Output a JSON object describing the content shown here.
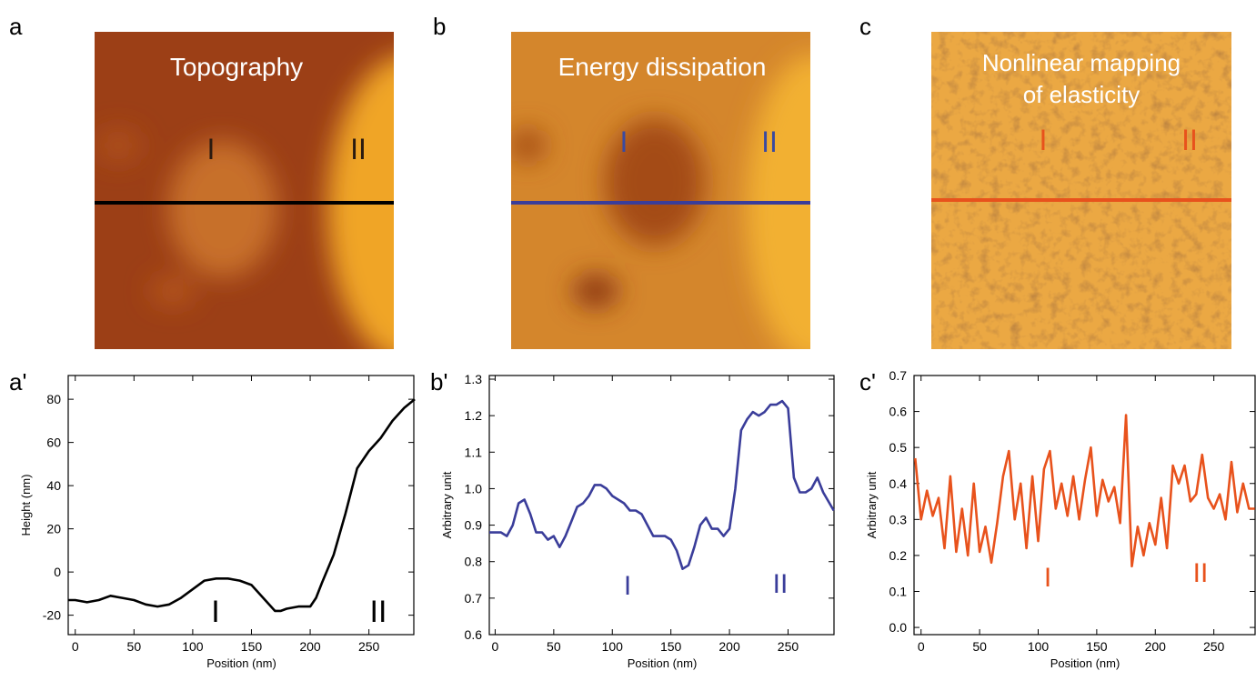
{
  "images": [
    {
      "label": "a",
      "title": [
        "Topography"
      ],
      "regions": [
        "I",
        "II"
      ]
    },
    {
      "label": "b",
      "title": [
        "Energy dissipation"
      ],
      "regions": [
        "I",
        "II"
      ]
    },
    {
      "label": "c",
      "title": [
        "Nonlinear mapping",
        "of elasticity"
      ],
      "regions": [
        "I",
        "II"
      ]
    }
  ],
  "chart_data": [
    {
      "type": "line",
      "panel": "a'",
      "xlabel": "Position (nm)",
      "ylabel": "Height (nm)",
      "xlim": [
        -6,
        289
      ],
      "ylim": [
        -29,
        91
      ],
      "xticks": [
        0,
        50,
        100,
        150,
        200,
        250
      ],
      "yticks": [
        -20,
        0,
        20,
        40,
        60,
        80
      ],
      "x": [
        -6,
        0,
        10,
        20,
        30,
        40,
        50,
        60,
        70,
        80,
        90,
        100,
        110,
        120,
        130,
        140,
        150,
        160,
        170,
        175,
        180,
        190,
        200,
        205,
        210,
        220,
        230,
        240,
        250,
        260,
        270,
        280,
        289
      ],
      "series": [
        {
          "color": "#000000",
          "values": [
            -13,
            -13,
            -14,
            -13,
            -11,
            -12,
            -13,
            -15,
            -16,
            -15,
            -12,
            -8,
            -4,
            -3,
            -3,
            -4,
            -6,
            -12,
            -18,
            -18,
            -17,
            -16,
            -16,
            -12,
            -5,
            8,
            27,
            48,
            56,
            62,
            70,
            76,
            80
          ]
        }
      ],
      "annotations": [
        "I",
        "II"
      ]
    },
    {
      "type": "line",
      "panel": "b'",
      "xlabel": "Position (nm)",
      "ylabel": "Arbitrary unit",
      "xlim": [
        -5,
        290
      ],
      "ylim": [
        0.6,
        1.31
      ],
      "xticks": [
        0,
        50,
        100,
        150,
        200,
        250
      ],
      "yticks": [
        0.6,
        0.7,
        0.8,
        0.9,
        {
          "value": 1,
          "label": "1.0"
        },
        1.1,
        1.2,
        1.3
      ],
      "x": [
        -5,
        0,
        5,
        10,
        15,
        20,
        25,
        30,
        35,
        40,
        45,
        50,
        55,
        60,
        65,
        70,
        75,
        80,
        85,
        90,
        95,
        100,
        105,
        110,
        115,
        120,
        125,
        130,
        135,
        140,
        145,
        150,
        155,
        160,
        165,
        170,
        175,
        180,
        185,
        190,
        195,
        200,
        205,
        210,
        215,
        220,
        225,
        230,
        235,
        240,
        245,
        250,
        255,
        260,
        265,
        270,
        275,
        280,
        289
      ],
      "series": [
        {
          "color": "#3a3d9a",
          "values": [
            0.88,
            0.88,
            0.88,
            0.87,
            0.9,
            0.96,
            0.97,
            0.93,
            0.88,
            0.88,
            0.86,
            0.87,
            0.84,
            0.87,
            0.91,
            0.95,
            0.96,
            0.98,
            1.01,
            1.01,
            1.0,
            0.98,
            0.97,
            0.96,
            0.94,
            0.94,
            0.93,
            0.9,
            0.87,
            0.87,
            0.87,
            0.86,
            0.83,
            0.78,
            0.79,
            0.84,
            0.9,
            0.92,
            0.89,
            0.89,
            0.87,
            0.89,
            1.0,
            1.16,
            1.19,
            1.21,
            1.2,
            1.21,
            1.23,
            1.23,
            1.24,
            1.22,
            1.03,
            0.99,
            0.99,
            1.0,
            1.03,
            0.99,
            0.94
          ]
        }
      ],
      "annotations": [
        "I",
        "II"
      ]
    },
    {
      "type": "line",
      "panel": "c'",
      "xlabel": "Position (nm)",
      "ylabel": "Arbitrary unit",
      "xlim": [
        -6,
        286
      ],
      "ylim": [
        -0.02,
        0.7
      ],
      "xticks": [
        0,
        50,
        100,
        150,
        200,
        250
      ],
      "yticks": [
        {
          "value": 0,
          "label": "0.0"
        },
        0.1,
        0.2,
        0.3,
        0.4,
        0.5,
        0.6,
        0.7
      ],
      "x": [
        -5,
        0,
        5,
        10,
        15,
        20,
        25,
        30,
        35,
        40,
        45,
        50,
        55,
        60,
        65,
        70,
        75,
        80,
        85,
        90,
        95,
        100,
        105,
        110,
        115,
        120,
        125,
        130,
        135,
        140,
        145,
        150,
        155,
        160,
        165,
        170,
        175,
        180,
        185,
        190,
        195,
        200,
        205,
        210,
        215,
        220,
        225,
        230,
        235,
        240,
        245,
        250,
        255,
        260,
        265,
        270,
        275,
        280,
        285
      ],
      "series": [
        {
          "color": "#e8521c",
          "values": [
            0.47,
            0.3,
            0.38,
            0.31,
            0.36,
            0.22,
            0.42,
            0.21,
            0.33,
            0.2,
            0.4,
            0.21,
            0.28,
            0.18,
            0.29,
            0.42,
            0.49,
            0.3,
            0.4,
            0.22,
            0.42,
            0.24,
            0.44,
            0.49,
            0.33,
            0.4,
            0.31,
            0.42,
            0.3,
            0.41,
            0.5,
            0.31,
            0.41,
            0.35,
            0.39,
            0.29,
            0.59,
            0.17,
            0.28,
            0.2,
            0.29,
            0.23,
            0.36,
            0.22,
            0.45,
            0.4,
            0.45,
            0.35,
            0.37,
            0.48,
            0.36,
            0.33,
            0.37,
            0.3,
            0.46,
            0.32,
            0.4,
            0.33,
            0.33
          ]
        }
      ],
      "annotations": [
        "I",
        "II"
      ]
    }
  ]
}
